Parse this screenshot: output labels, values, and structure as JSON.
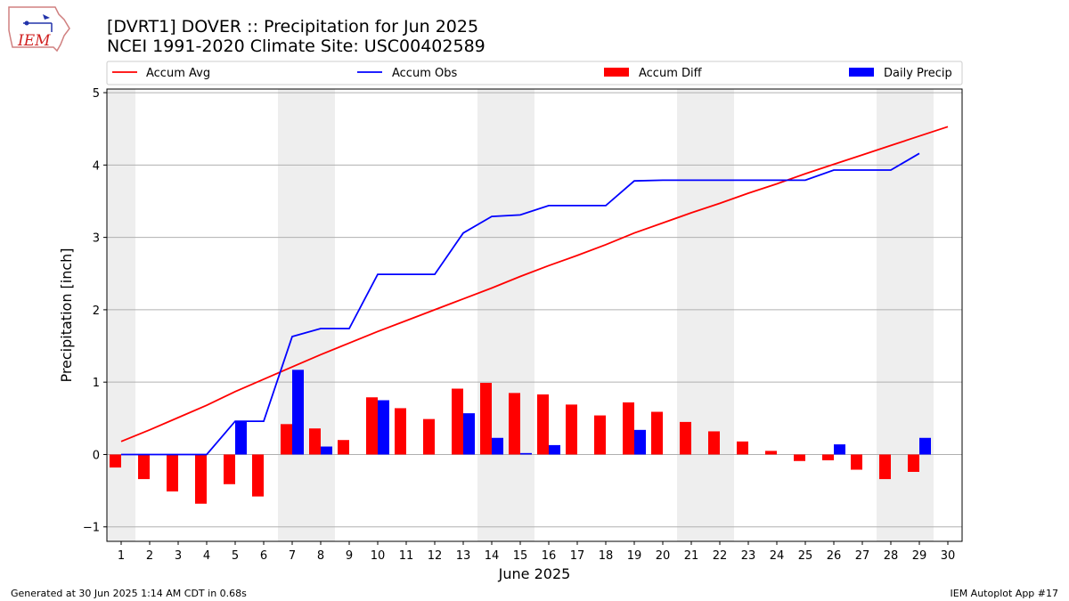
{
  "header": {
    "logo_text": "IEM",
    "title_line1": "[DVRT1] DOVER :: Precipitation for Jun 2025",
    "title_line2": "NCEI 1991-2020 Climate Site: USC00402589"
  },
  "footer": {
    "generated": "Generated at 30 Jun 2025 1:14 AM CDT in 0.68s",
    "app": "IEM Autoplot App #17"
  },
  "chart_data": {
    "type": "bar",
    "xlabel": "June 2025",
    "ylabel": "Precipitation [inch]",
    "xlim": [
      0.5,
      30.5
    ],
    "ylim": [
      -1.2,
      5.05
    ],
    "yticks": [
      -1,
      0,
      1,
      2,
      3,
      4,
      5
    ],
    "days": [
      1,
      2,
      3,
      4,
      5,
      6,
      7,
      8,
      9,
      10,
      11,
      12,
      13,
      14,
      15,
      16,
      17,
      18,
      19,
      20,
      21,
      22,
      23,
      24,
      25,
      26,
      27,
      28,
      29,
      30
    ],
    "weekend_days": [
      1,
      7,
      8,
      14,
      15,
      21,
      22,
      28,
      29
    ],
    "grid": "horizontal",
    "legend_position": "top",
    "colors": {
      "accum_avg": "#ff0000",
      "accum_obs": "#0000ff",
      "accum_diff": "#ff0000",
      "daily_precip": "#0000ff",
      "weekend_shade": "#eeeeee"
    },
    "series": [
      {
        "name": "Accum Avg",
        "kind": "line",
        "values": [
          0.18,
          0.34,
          0.51,
          0.68,
          0.87,
          1.04,
          1.21,
          1.38,
          1.54,
          1.7,
          1.85,
          2.0,
          2.15,
          2.3,
          2.46,
          2.61,
          2.75,
          2.9,
          3.06,
          3.2,
          3.34,
          3.47,
          3.61,
          3.74,
          3.88,
          4.01,
          4.14,
          4.27,
          4.4,
          4.53
        ]
      },
      {
        "name": "Accum Obs",
        "kind": "line",
        "values": [
          0.0,
          0.0,
          0.0,
          0.0,
          0.46,
          0.46,
          1.63,
          1.74,
          1.74,
          2.49,
          2.49,
          2.49,
          3.06,
          3.29,
          3.31,
          3.44,
          3.44,
          3.44,
          3.78,
          3.79,
          3.79,
          3.79,
          3.79,
          3.79,
          3.79,
          3.93,
          3.93,
          3.93,
          4.16,
          null
        ]
      },
      {
        "name": "Accum Diff",
        "kind": "bar",
        "values": [
          -0.18,
          -0.34,
          -0.51,
          -0.68,
          -0.41,
          -0.58,
          0.42,
          0.36,
          0.2,
          0.79,
          0.64,
          0.49,
          0.91,
          0.99,
          0.85,
          0.83,
          0.69,
          0.54,
          0.72,
          0.59,
          0.45,
          0.32,
          0.18,
          0.05,
          -0.09,
          -0.08,
          -0.21,
          -0.34,
          -0.24,
          null
        ]
      },
      {
        "name": "Daily Precip",
        "kind": "bar",
        "values": [
          0.0,
          0.0,
          0.0,
          0.0,
          0.46,
          0.0,
          1.17,
          0.11,
          0.0,
          0.75,
          0.0,
          0.0,
          0.57,
          0.23,
          0.02,
          0.13,
          0.0,
          0.0,
          0.34,
          0.0,
          0.0,
          0.0,
          0.0,
          0.0,
          0.0,
          0.14,
          0.0,
          0.0,
          0.23,
          null
        ]
      }
    ]
  }
}
